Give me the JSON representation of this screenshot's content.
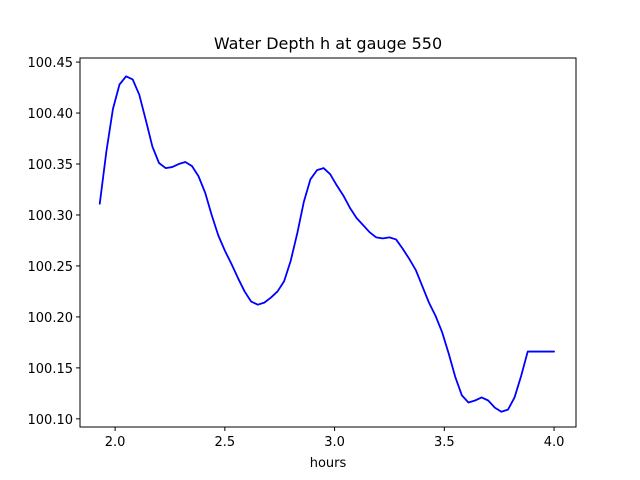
{
  "chart_data": {
    "type": "line",
    "title": "Water Depth h at gauge 550",
    "xlabel": "hours",
    "ylabel": "",
    "xlim": [
      1.84,
      4.1
    ],
    "ylim": [
      100.092,
      100.454
    ],
    "x_ticks": [
      2.0,
      2.5,
      3.0,
      3.5,
      4.0
    ],
    "x_tick_labels": [
      "2.0",
      "2.5",
      "3.0",
      "3.5",
      "4.0"
    ],
    "y_ticks": [
      100.1,
      100.15,
      100.2,
      100.25,
      100.3,
      100.35,
      100.4,
      100.45
    ],
    "y_tick_labels": [
      "100.10",
      "100.15",
      "100.20",
      "100.25",
      "100.30",
      "100.35",
      "100.40",
      "100.45"
    ],
    "grid": false,
    "series": [
      {
        "color": "#0000ff",
        "x": [
          1.93,
          1.96,
          1.99,
          2.02,
          2.05,
          2.08,
          2.11,
          2.14,
          2.17,
          2.2,
          2.23,
          2.26,
          2.29,
          2.32,
          2.35,
          2.38,
          2.41,
          2.44,
          2.47,
          2.5,
          2.53,
          2.56,
          2.59,
          2.62,
          2.65,
          2.68,
          2.71,
          2.74,
          2.77,
          2.8,
          2.83,
          2.86,
          2.89,
          2.92,
          2.95,
          2.98,
          3.01,
          3.04,
          3.07,
          3.1,
          3.13,
          3.16,
          3.19,
          3.22,
          3.25,
          3.28,
          3.31,
          3.34,
          3.37,
          3.4,
          3.43,
          3.46,
          3.49,
          3.52,
          3.55,
          3.58,
          3.61,
          3.64,
          3.67,
          3.7,
          3.73,
          3.76,
          3.79,
          3.82,
          3.85,
          3.88,
          3.91,
          3.94,
          3.97,
          4.0
        ],
        "y": [
          100.311,
          100.362,
          100.404,
          100.428,
          100.436,
          100.433,
          100.418,
          100.393,
          100.367,
          100.351,
          100.346,
          100.347,
          100.35,
          100.352,
          100.348,
          100.338,
          100.322,
          100.3,
          100.28,
          100.265,
          100.252,
          100.238,
          100.225,
          100.215,
          100.212,
          100.214,
          100.219,
          100.225,
          100.235,
          100.255,
          100.282,
          100.313,
          100.335,
          100.344,
          100.346,
          100.34,
          100.329,
          100.319,
          100.307,
          100.297,
          100.29,
          100.283,
          100.278,
          100.277,
          100.278,
          100.276,
          100.267,
          100.257,
          100.246,
          100.23,
          100.214,
          100.201,
          100.185,
          100.164,
          100.141,
          100.123,
          100.116,
          100.118,
          100.121,
          100.118,
          100.111,
          100.107,
          100.109,
          100.121,
          100.142,
          100.166,
          100.166,
          100.166,
          100.166,
          100.166
        ]
      }
    ]
  }
}
